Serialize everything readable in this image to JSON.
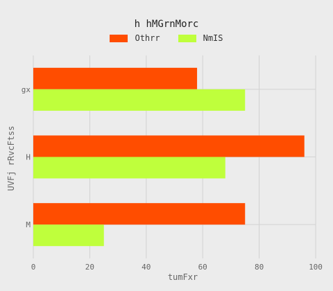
{
  "chart_data": {
    "type": "bar",
    "orientation": "horizontal",
    "title": "h hMGrnMorc",
    "xlabel": "tumFxr",
    "ylabel": "UVFj rRvcFtss",
    "categories": [
      "gx",
      "H",
      "M"
    ],
    "series": [
      {
        "name": "Othrr",
        "color": "#ff4d00",
        "values": [
          58,
          96,
          75
        ]
      },
      {
        "name": "NmIS",
        "color": "#bfff3c",
        "values": [
          75,
          68,
          25
        ]
      }
    ],
    "xlim": [
      0,
      100
    ],
    "xticks": [
      0,
      20,
      40,
      60,
      80,
      100
    ],
    "grid": true,
    "legend_position": "top"
  }
}
